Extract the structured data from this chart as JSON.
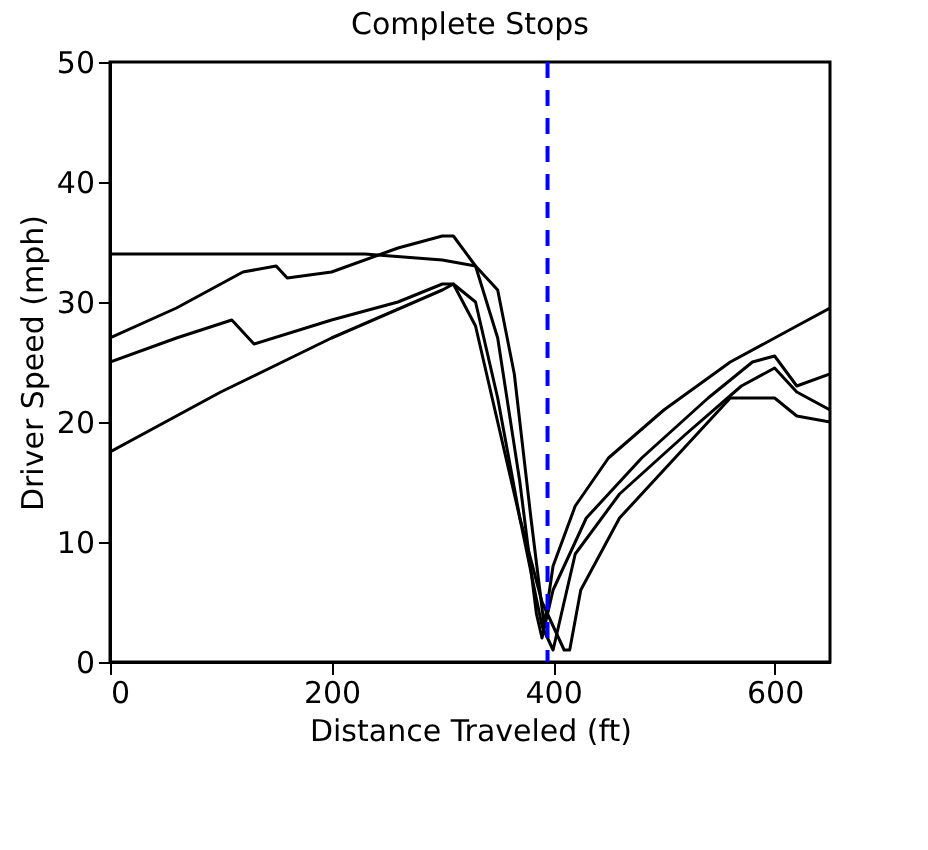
{
  "chart_data": {
    "type": "line",
    "title": "Complete Stops",
    "xlabel": "Distance Traveled (ft)",
    "ylabel": "Driver Speed (mph)",
    "xlim": [
      0,
      650
    ],
    "xticks": [
      0,
      200,
      400,
      600
    ],
    "ylim": [
      0,
      50
    ],
    "yticks": [
      0,
      10,
      20,
      30,
      40,
      50
    ],
    "grid": false,
    "line_style": "solid",
    "marker": "none",
    "series": [
      {
        "color": "#000000",
        "x": [
          0,
          230,
          300,
          330,
          350,
          365,
          380,
          392,
          400,
          420,
          450,
          500,
          560,
          620,
          650
        ],
        "values": [
          34,
          34,
          33.5,
          33,
          31,
          24,
          12,
          3,
          8,
          13,
          17,
          21,
          25,
          28,
          29.5
        ]
      },
      {
        "color": "#000000",
        "x": [
          0,
          60,
          120,
          150,
          160,
          200,
          260,
          300,
          310,
          330,
          350,
          370,
          385,
          390,
          400,
          430,
          480,
          540,
          580,
          600,
          620,
          650
        ],
        "values": [
          27,
          29.5,
          32.5,
          33,
          32,
          32.5,
          34.5,
          35.5,
          35.5,
          33,
          27,
          15,
          4,
          2,
          6,
          12,
          17,
          22,
          25,
          25.5,
          23,
          24
        ]
      },
      {
        "color": "#000000",
        "x": [
          0,
          60,
          110,
          130,
          200,
          260,
          300,
          310,
          330,
          350,
          370,
          390,
          400,
          405,
          420,
          460,
          520,
          570,
          600,
          620,
          650
        ],
        "values": [
          25,
          27,
          28.5,
          26.5,
          28.5,
          30,
          31.5,
          31.5,
          30,
          22,
          12,
          3,
          1,
          3,
          9,
          14,
          19,
          23,
          24.5,
          22.5,
          21
        ]
      },
      {
        "color": "#000000",
        "x": [
          0,
          100,
          200,
          300,
          310,
          330,
          350,
          370,
          390,
          410,
          415,
          425,
          460,
          520,
          560,
          600,
          620,
          650
        ],
        "values": [
          17.5,
          22.5,
          27,
          31,
          31.5,
          28,
          20,
          12,
          5,
          1,
          1,
          6,
          12,
          18,
          22,
          22,
          20.5,
          20
        ]
      }
    ],
    "ref_lines": [
      {
        "axis": "x",
        "value": 395,
        "color": "#0000ff",
        "line_style": "dashed"
      }
    ]
  }
}
